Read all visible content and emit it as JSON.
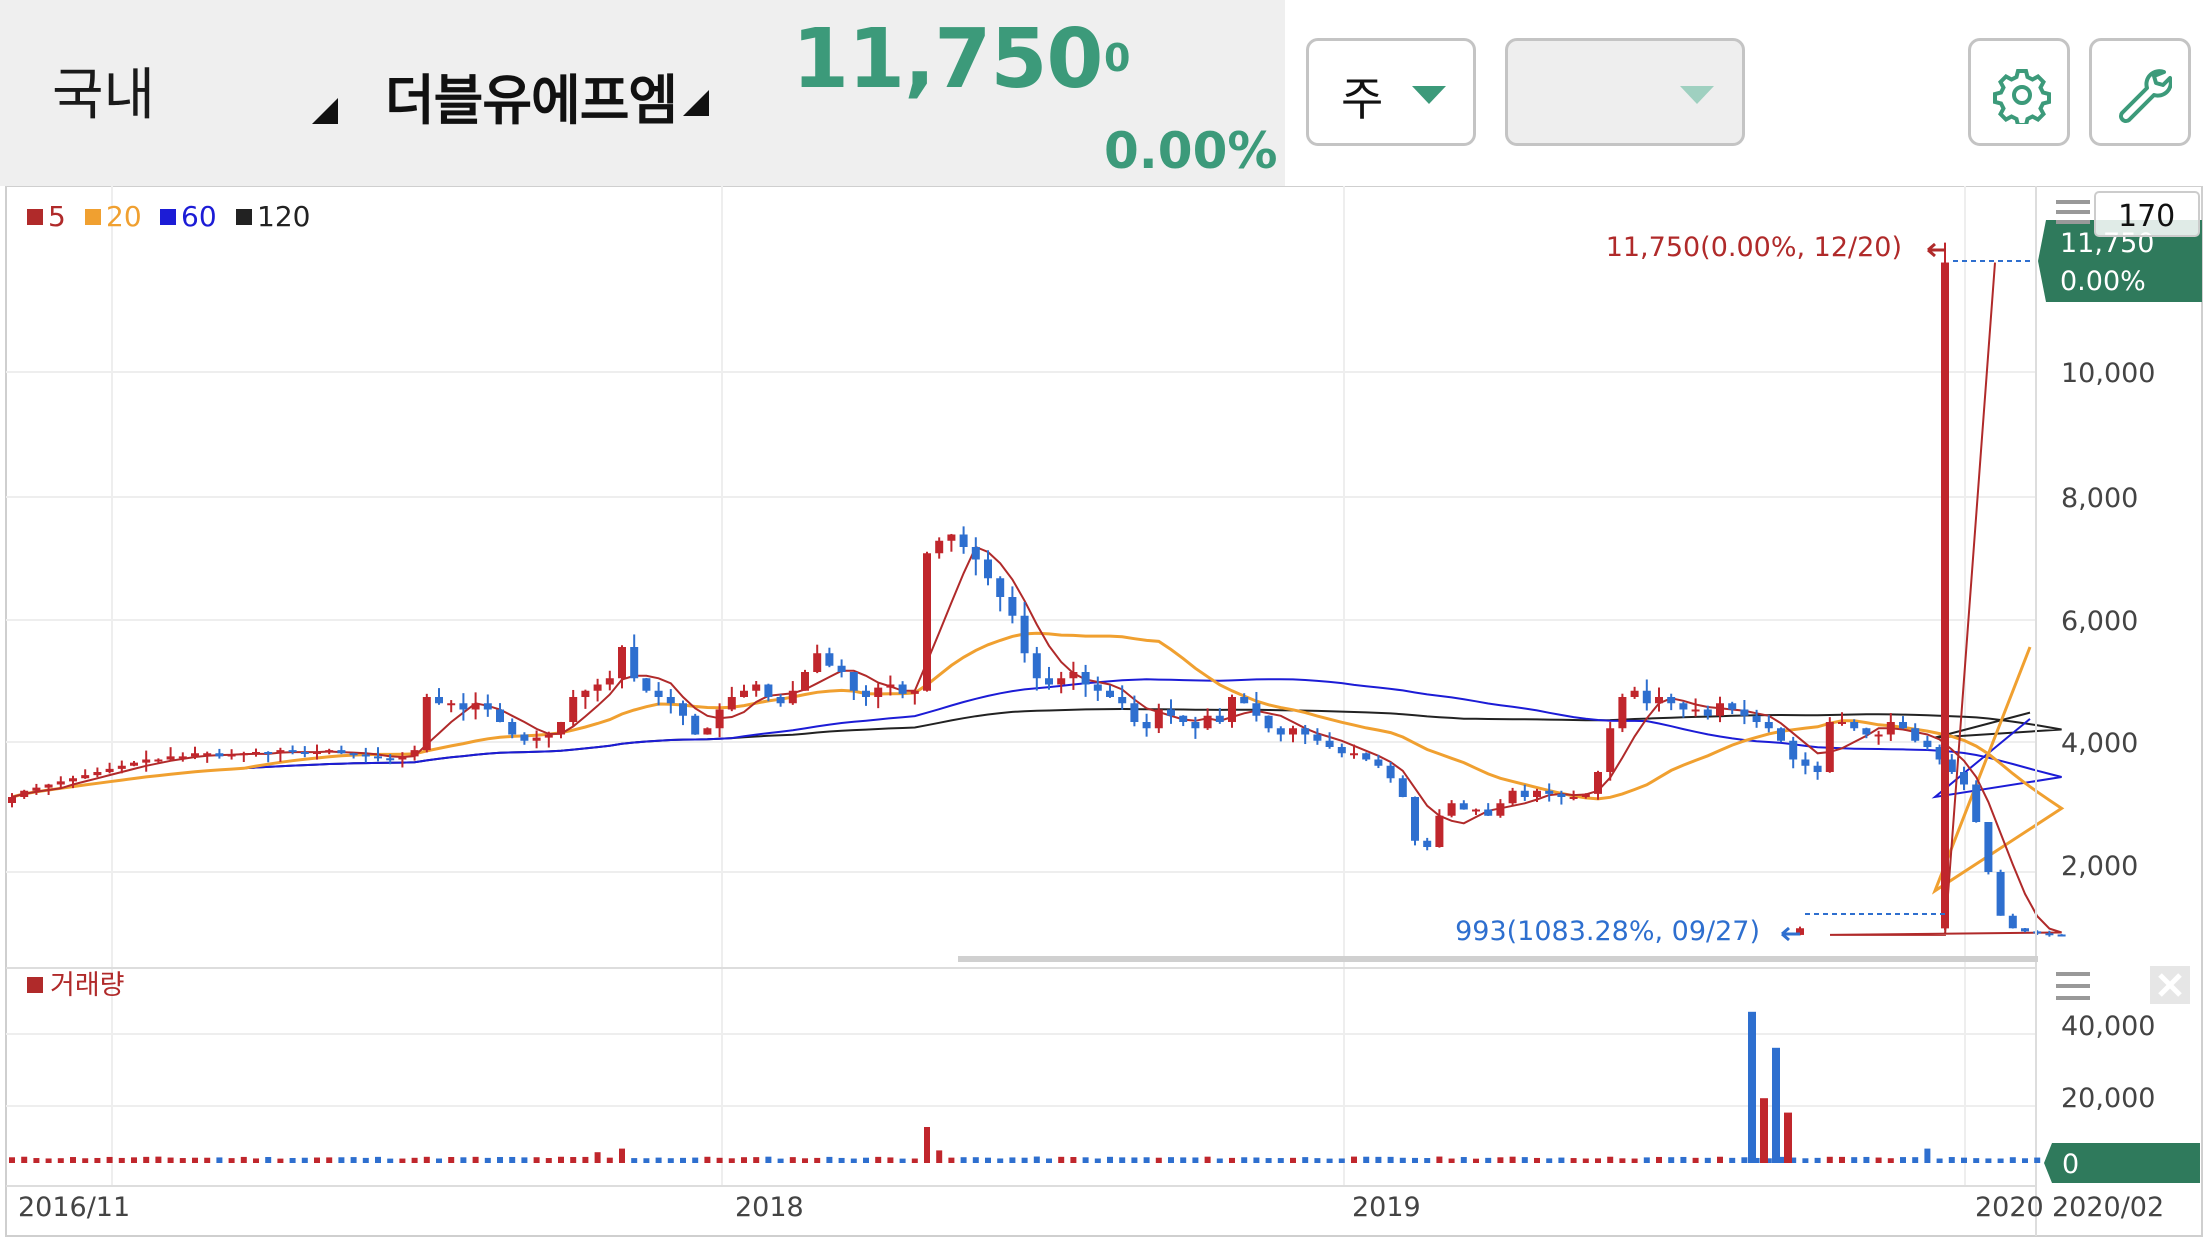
{
  "header": {
    "market": "국내",
    "stock_name": "더블유에프엠",
    "price": "11,750",
    "change": "0",
    "change_rate": "0.00%"
  },
  "controls": {
    "period": "주",
    "compare": "",
    "settings_icon": "gear-icon",
    "tools_icon": "wrench-icon"
  },
  "colors": {
    "up": "#c0262c",
    "down": "#2e6fcf",
    "ma5": "#b02a2a",
    "ma20": "#f0a030",
    "ma60": "#1c1cd6",
    "ma120": "#222222",
    "accent": "#3c9a7a",
    "price_tag": "#2f7a5c"
  },
  "chart_data": {
    "type": "candlestick",
    "interval": "weekly",
    "x_tick_labels": [
      "2016/11",
      "2018",
      "2019",
      "2020",
      "2020/02"
    ],
    "legend": [
      {
        "label": "5",
        "color": "#b02a2a"
      },
      {
        "label": "20",
        "color": "#f0a030"
      },
      {
        "label": "60",
        "color": "#1c1cd6"
      },
      {
        "label": "120",
        "color": "#222222"
      }
    ],
    "price_axis": {
      "ticks": [
        "10,000",
        "8,000",
        "6,000",
        "4,000",
        "2,000"
      ],
      "ylim": [
        900,
        12100
      ]
    },
    "current_price_tag": {
      "price": "11,750",
      "rate": "0.00%"
    },
    "scale_label": "170",
    "annotations": {
      "high": {
        "text": "11,750(0.00%, 12/20)",
        "value": 11750
      },
      "low": {
        "text": "993(1083.28%, 09/27)",
        "value": 993
      }
    },
    "price_series": {
      "start": "2016/10",
      "weekly_close": [
        3200,
        3300,
        3350,
        3400,
        3450,
        3500,
        3550,
        3600,
        3650,
        3700,
        3750,
        3800,
        3800,
        3850,
        3850,
        3900,
        3900,
        3850,
        3880,
        3900,
        3920,
        3900,
        3950,
        3920,
        3900,
        3920,
        3950,
        3900,
        3880,
        3850,
        3820,
        3800,
        3850,
        3950,
        4800,
        4700,
        4700,
        4600,
        4700,
        4600,
        4400,
        4200,
        4100,
        4150,
        4200,
        4400,
        4800,
        4900,
        5000,
        5100,
        5600,
        5100,
        4900,
        4800,
        4700,
        4500,
        4200,
        4300,
        4600,
        4800,
        4900,
        5000,
        4800,
        4700,
        4900,
        5200,
        5500,
        5300,
        5200,
        4900,
        4800,
        4950,
        5000,
        4850,
        4900,
        7100,
        7300,
        7400,
        7200,
        7000,
        6700,
        6400,
        6100,
        5500,
        5100,
        5000,
        5100,
        5200,
        5000,
        4900,
        4800,
        4700,
        4400,
        4300,
        4600,
        4500,
        4400,
        4300,
        4500,
        4400,
        4800,
        4700,
        4500,
        4300,
        4200,
        4300,
        4200,
        4100,
        4000,
        3900,
        3900,
        3800,
        3700,
        3500,
        3200,
        2500,
        2400,
        2900,
        3100,
        3000,
        3000,
        2900,
        3100,
        3300,
        3200,
        3300,
        3250,
        3200,
        3200,
        3250,
        3600,
        4300,
        4800,
        4900,
        4700,
        4800,
        4700,
        4600,
        4600,
        4500,
        4700,
        4600,
        4500,
        4400,
        4300,
        4100,
        3800,
        3700,
        3600,
        4400,
        4400,
        4300,
        4200,
        4200,
        4400,
        4300,
        4100,
        4000,
        3800,
        3600,
        3400,
        2800,
        2000,
        1300,
        1100,
        1050,
        1020,
        1000,
        993,
        993,
        993,
        993,
        993,
        993,
        993,
        993,
        1100,
        11750
      ],
      "ma20_tail": [
        1700,
        5600
      ],
      "ma60_tail": [
        3200,
        4450
      ],
      "ma120_tail": [
        4150,
        4550
      ]
    },
    "volume": {
      "legend": "거래량",
      "ticks": [
        "40,000",
        "20,000"
      ],
      "current_tag": "0",
      "spikes": [
        42000,
        18000,
        32000,
        14000
      ]
    }
  }
}
